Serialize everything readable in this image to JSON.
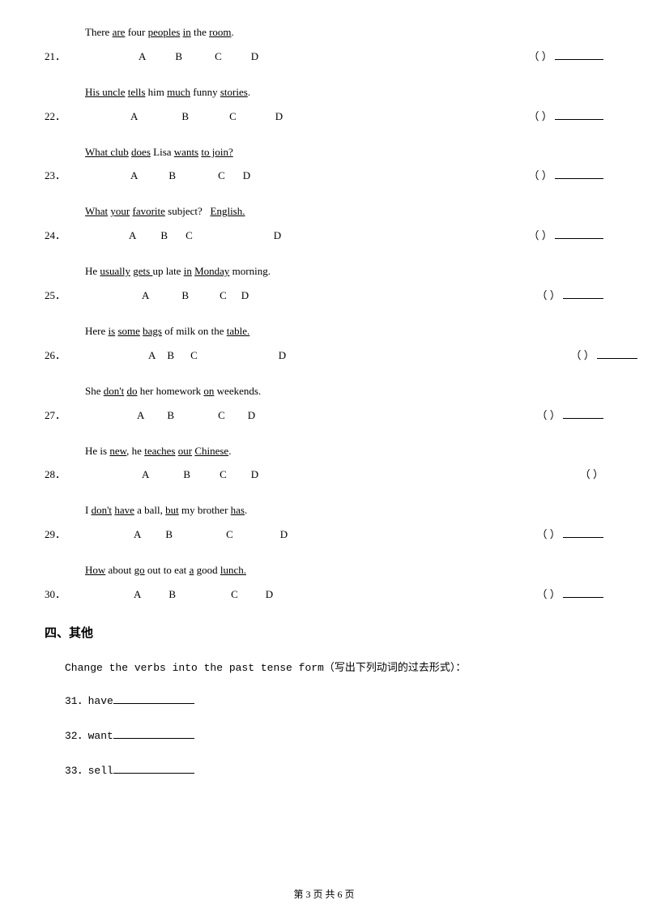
{
  "questions": [
    {
      "num": "21．",
      "sentence": "There <span class='u'>are</span> four <span class='u'>peoples</span> <span class='u'>in</span> the <span class='u'>room</span>.",
      "optA": "A",
      "optB": "B",
      "optC": "C",
      "optD": "D",
      "gapA": 66,
      "gapAB": 36,
      "gapBC": 40,
      "gapCD": 36,
      "paren": "（  ）",
      "blankClass": "blank"
    },
    {
      "num": "22．",
      "sentence": "<span class='u'>His uncle</span> <span class='u'>tells</span> him <span class='u'>much</span> funny <span class='u'>stories</span>.",
      "optA": "A",
      "optB": "B",
      "optC": "C",
      "optD": "D",
      "gapA": 56,
      "gapAB": 54,
      "gapBC": 50,
      "gapCD": 48,
      "paren": "（  ）",
      "blankClass": "blank"
    },
    {
      "num": "23．",
      "sentence": "<span class='u'>What club</span> <span class='u'>does</span> Lisa <span class='u'>wants</span> <span class='u'>to join?</span>",
      "optA": "A",
      "optB": "B",
      "optC": "C",
      "optD": "D",
      "gapA": 56,
      "gapAB": 38,
      "gapBC": 52,
      "gapCD": 22,
      "paren": "（  ）",
      "blankClass": "blank"
    },
    {
      "num": "24．",
      "sentence": "<span class='u'>What</span> <span class='u'>your</span> <span class='u'>favorite</span> subject? &nbsp;&nbsp;<span class='u'>English.</span>",
      "optA": "A",
      "optB": "B",
      "optC": "C",
      "optD": "D",
      "gapA": 54,
      "gapAB": 30,
      "gapBC": 22,
      "gapCD": 100,
      "paren": "（  ）",
      "blankClass": "blank"
    },
    {
      "num": "25．",
      "sentence": "He <span class='u'>usually</span> <span class='u'>gets </span>up late <span class='u'>in</span> <span class='u'>Monday</span> morning.",
      "optA": "A",
      "optB": "B",
      "optC": "C",
      "optD": "D",
      "gapA": 70,
      "gapAB": 40,
      "gapBC": 38,
      "gapCD": 18,
      "paren": "（  ）",
      "blankClass": "blank blank-short"
    },
    {
      "num": "26．",
      "sentence": "Here <span class='u'>is</span> <span class='u'>some</span> <span class='u'>bags</span> of milk on the <span class='u'>table.</span>",
      "optA": "A",
      "optB": "B",
      "optC": "C",
      "optD": "D",
      "gapA": 78,
      "gapAB": 14,
      "gapBC": 20,
      "gapCD": 100,
      "paren": "（  ）",
      "blankClass": "blank blank-short",
      "extraShift": 42
    },
    {
      "num": "27．",
      "sentence": "She <span class='u'>don't</span> <span class='u'>do</span> her homework <span class='u'>on</span> weekends.",
      "optA": "A",
      "optB": "B",
      "optC": "C",
      "optD": "D",
      "gapA": 64,
      "gapAB": 28,
      "gapBC": 54,
      "gapCD": 28,
      "paren": "（  ）",
      "blankClass": "blank blank-short"
    },
    {
      "num": "28．",
      "sentence": "He is <span class='u'>new</span>, he <span class='u'>teaches</span> <span class='u'>our</span> <span class='u'>Chinese</span>.",
      "optA": "A",
      "optB": "B",
      "optC": "C",
      "optD": "D",
      "gapA": 70,
      "gapAB": 42,
      "gapBC": 36,
      "gapCD": 30,
      "paren": "（  ）",
      "blankClass": "",
      "noBlank": true
    },
    {
      "num": "29．",
      "sentence": "I <span class='u'>don't</span> <span class='u'>have</span> a ball, <span class='u'>but</span> my brother <span class='u'>has</span>.",
      "optA": "A",
      "optB": "B",
      "optC": "C",
      "optD": "D",
      "gapA": 60,
      "gapAB": 30,
      "gapBC": 66,
      "gapCD": 58,
      "paren": "（  ）",
      "blankClass": "blank blank-short"
    },
    {
      "num": "30．",
      "sentence": "<span class='u'>How</span> about <span class='u'>go</span> out to eat <span class='u'>a</span> good <span class='u'>lunch.</span>",
      "optA": "A",
      "optB": "B",
      "optC": "C",
      "optD": "D",
      "gapA": 60,
      "gapAB": 34,
      "gapBC": 68,
      "gapCD": 34,
      "paren": "（  ）",
      "blankClass": "blank blank-short"
    }
  ],
  "section4": {
    "title": "四、其他",
    "desc": "Change the verbs into the past tense form（写出下列动词的过去形式）：",
    "items": [
      {
        "num": "31．",
        "word": "have"
      },
      {
        "num": "32．",
        "word": "want"
      },
      {
        "num": "33．",
        "word": "sell"
      }
    ]
  },
  "footer": "第 3 页 共 6 页"
}
